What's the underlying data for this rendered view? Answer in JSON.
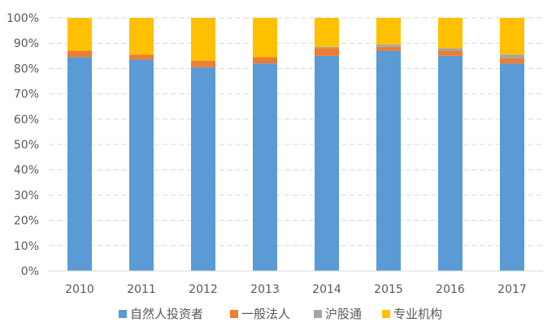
{
  "chart_data": {
    "type": "bar",
    "stacked": true,
    "percent": true,
    "categories": [
      "2010",
      "2011",
      "2012",
      "2013",
      "2014",
      "2015",
      "2016",
      "2017"
    ],
    "series": [
      {
        "name": "自然人投资者",
        "color": "#5B9BD5",
        "values": [
          84.5,
          83.5,
          80.5,
          82.0,
          85.0,
          87.0,
          85.0,
          82.0
        ]
      },
      {
        "name": "一般法人",
        "color": "#ED7D31",
        "values": [
          2.5,
          2.0,
          2.5,
          2.5,
          3.0,
          1.5,
          2.0,
          2.0
        ]
      },
      {
        "name": "沪股通",
        "color": "#A5A5A5",
        "values": [
          0.0,
          0.0,
          0.0,
          0.0,
          0.5,
          1.0,
          1.0,
          1.5
        ]
      },
      {
        "name": "专业机构",
        "color": "#FFC000",
        "values": [
          13.0,
          14.5,
          17.0,
          15.5,
          11.5,
          10.5,
          12.0,
          14.5
        ]
      }
    ],
    "yticks": [
      "0%",
      "10%",
      "20%",
      "30%",
      "40%",
      "50%",
      "60%",
      "70%",
      "80%",
      "90%",
      "100%"
    ],
    "ylim": [
      0,
      100
    ],
    "grid": true,
    "legend": "bottom",
    "title": "",
    "xlabel": "",
    "ylabel": ""
  }
}
